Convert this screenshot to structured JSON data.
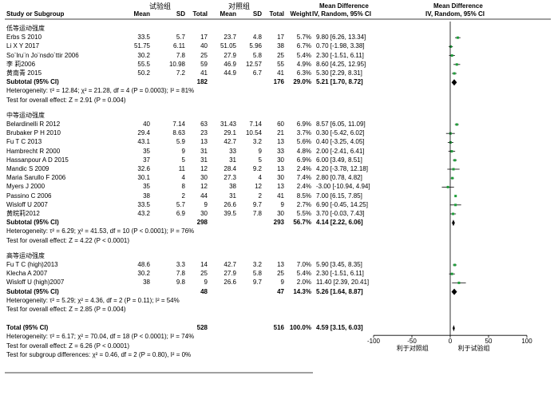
{
  "header": {
    "group_exp": "试验组",
    "group_ctrl": "对照组",
    "md_title": "Mean Difference",
    "md_sub": "IV, Random, 95% CI",
    "plot_title": "Mean Difference",
    "plot_sub": "IV, Random, 95% CI",
    "col_study": "Study or Subgroup",
    "col_mean1": "Mean",
    "col_sd1": "SD",
    "col_total1": "Total",
    "col_mean2": "Mean",
    "col_sd2": "SD",
    "col_total2": "Total",
    "col_weight": "Weight"
  },
  "chart_data": {
    "type": "forest",
    "xlim": [
      -100,
      100
    ],
    "xticks": [
      "-100",
      "-50",
      "0",
      "50",
      "100"
    ],
    "xlabel_left": "利于对照组",
    "xlabel_right": "利于试验组",
    "subgroups": [
      {
        "title": "低等运动强度",
        "studies": [
          {
            "name": "Erbs S 2010",
            "m1": "33.5",
            "sd1": "5.7",
            "n1": "17",
            "m2": "23.7",
            "sd2": "4.8",
            "n2": "17",
            "w": "5.7%",
            "ci": "9.80 [6.26, 13.34]",
            "md": 9.8,
            "lo": 6.26,
            "hi": 13.34
          },
          {
            "name": "Li X Y 2017",
            "m1": "51.75",
            "sd1": "6.11",
            "n1": "40",
            "m2": "51.05",
            "sd2": "5.96",
            "n2": "38",
            "w": "6.7%",
            "ci": "0.70 [-1.98, 3.38]",
            "md": 0.7,
            "lo": -1.98,
            "hi": 3.38
          },
          {
            "name": "So¨lru¨n Jo¨nsdo´ttir 2006",
            "m1": "30.2",
            "sd1": "7.8",
            "n1": "25",
            "m2": "27.9",
            "sd2": "5.8",
            "n2": "25",
            "w": "5.4%",
            "ci": "2.30 [-1.51, 6.11]",
            "md": 2.3,
            "lo": -1.51,
            "hi": 6.11
          },
          {
            "name": "李 莉2006",
            "m1": "55.5",
            "sd1": "10.98",
            "n1": "59",
            "m2": "46.9",
            "sd2": "12.57",
            "n2": "55",
            "w": "4.9%",
            "ci": "8.60 [4.25, 12.95]",
            "md": 8.6,
            "lo": 4.25,
            "hi": 12.95
          },
          {
            "name": "黄南青 2015",
            "m1": "50.2",
            "sd1": "7.2",
            "n1": "41",
            "m2": "44.9",
            "sd2": "6.7",
            "n2": "41",
            "w": "6.3%",
            "ci": "5.30 [2.29, 8.31]",
            "md": 5.3,
            "lo": 2.29,
            "hi": 8.31
          }
        ],
        "subtotal": {
          "label": "Subtotal (95% CI)",
          "n1": "182",
          "n2": "176",
          "w": "29.0%",
          "ci": "5.21 [1.70, 8.72]",
          "md": 5.21,
          "lo": 1.7,
          "hi": 8.72
        },
        "het": "Heterogeneity: τ² = 12.84; χ² = 21.28, df = 4 (P = 0.0003); I² = 81%",
        "test": "Test for overall effect: Z = 2.91 (P = 0.004)"
      },
      {
        "title": "中等运动强度",
        "studies": [
          {
            "name": "Belardinelli R 2012",
            "m1": "40",
            "sd1": "7.14",
            "n1": "63",
            "m2": "31.43",
            "sd2": "7.14",
            "n2": "60",
            "w": "6.9%",
            "ci": "8.57 [6.05, 11.09]",
            "md": 8.57,
            "lo": 6.05,
            "hi": 11.09
          },
          {
            "name": "Brubaker P H 2010",
            "m1": "29.4",
            "sd1": "8.63",
            "n1": "23",
            "m2": "29.1",
            "sd2": "10.54",
            "n2": "21",
            "w": "3.7%",
            "ci": "0.30 [-5.42, 6.02]",
            "md": 0.3,
            "lo": -5.42,
            "hi": 6.02
          },
          {
            "name": "Fu T C 2013",
            "m1": "43.1",
            "sd1": "5.9",
            "n1": "13",
            "m2": "42.7",
            "sd2": "3.2",
            "n2": "13",
            "w": "5.6%",
            "ci": "0.40 [-3.25, 4.05]",
            "md": 0.4,
            "lo": -3.25,
            "hi": 4.05
          },
          {
            "name": "Hambrecht R 2000",
            "m1": "35",
            "sd1": "9",
            "n1": "31",
            "m2": "33",
            "sd2": "9",
            "n2": "33",
            "w": "4.8%",
            "ci": "2.00 [-2.41, 6.41]",
            "md": 2.0,
            "lo": -2.41,
            "hi": 6.41
          },
          {
            "name": "Hassanpour A D 2015",
            "m1": "37",
            "sd1": "5",
            "n1": "31",
            "m2": "31",
            "sd2": "5",
            "n2": "30",
            "w": "6.9%",
            "ci": "6.00 [3.49, 8.51]",
            "md": 6.0,
            "lo": 3.49,
            "hi": 8.51
          },
          {
            "name": "Mandic S 2009",
            "m1": "32.6",
            "sd1": "11",
            "n1": "12",
            "m2": "28.4",
            "sd2": "9.2",
            "n2": "13",
            "w": "2.4%",
            "ci": "4.20 [-3.78, 12.18]",
            "md": 4.2,
            "lo": -3.78,
            "hi": 12.18
          },
          {
            "name": "Maria Sarullo F 2006",
            "m1": "30.1",
            "sd1": "4",
            "n1": "30",
            "m2": "27.3",
            "sd2": "4",
            "n2": "30",
            "w": "7.4%",
            "ci": "2.80 [0.78, 4.82]",
            "md": 2.8,
            "lo": 0.78,
            "hi": 4.82
          },
          {
            "name": "Myers J 2000",
            "m1": "35",
            "sd1": "8",
            "n1": "12",
            "m2": "38",
            "sd2": "12",
            "n2": "13",
            "w": "2.4%",
            "ci": "-3.00 [-10.94, 4.94]",
            "md": -3.0,
            "lo": -10.94,
            "hi": 4.94
          },
          {
            "name": "Passino C 2006",
            "m1": "38",
            "sd1": "2",
            "n1": "44",
            "m2": "31",
            "sd2": "2",
            "n2": "41",
            "w": "8.5%",
            "ci": "7.00 [6.15, 7.85]",
            "md": 7.0,
            "lo": 6.15,
            "hi": 7.85
          },
          {
            "name": "Wisloff U 2007",
            "m1": "33.5",
            "sd1": "5.7",
            "n1": "9",
            "m2": "26.6",
            "sd2": "9.7",
            "n2": "9",
            "w": "2.7%",
            "ci": "6.90 [-0.45, 14.25]",
            "md": 6.9,
            "lo": -0.45,
            "hi": 14.25
          },
          {
            "name": "黄皖莉2012",
            "m1": "43.2",
            "sd1": "6.9",
            "n1": "30",
            "m2": "39.5",
            "sd2": "7.8",
            "n2": "30",
            "w": "5.5%",
            "ci": "3.70 [-0.03, 7.43]",
            "md": 3.7,
            "lo": -0.03,
            "hi": 7.43
          }
        ],
        "subtotal": {
          "label": "Subtotal (95% CI)",
          "n1": "298",
          "n2": "293",
          "w": "56.7%",
          "ci": "4.14 [2.22, 6.06]",
          "md": 4.14,
          "lo": 2.22,
          "hi": 6.06
        },
        "het": "Heterogeneity: τ² = 6.29; χ² = 41.53, df = 10 (P < 0.0001); I² = 76%",
        "test": "Test for overall effect: Z = 4.22 (P < 0.0001)"
      },
      {
        "title": "高等运动强度",
        "studies": [
          {
            "name": "Fu T C (high)2013",
            "m1": "48.6",
            "sd1": "3.3",
            "n1": "14",
            "m2": "42.7",
            "sd2": "3.2",
            "n2": "13",
            "w": "7.0%",
            "ci": "5.90 [3.45, 8.35]",
            "md": 5.9,
            "lo": 3.45,
            "hi": 8.35
          },
          {
            "name": "Klecha A 2007",
            "m1": "30.2",
            "sd1": "7.8",
            "n1": "25",
            "m2": "27.9",
            "sd2": "5.8",
            "n2": "25",
            "w": "5.4%",
            "ci": "2.30 [-1.51, 6.11]",
            "md": 2.3,
            "lo": -1.51,
            "hi": 6.11
          },
          {
            "name": "Wisloff U (high)2007",
            "m1": "38",
            "sd1": "9.8",
            "n1": "9",
            "m2": "26.6",
            "sd2": "9.7",
            "n2": "9",
            "w": "2.0%",
            "ci": "11.40 [2.39, 20.41]",
            "md": 11.4,
            "lo": 2.39,
            "hi": 20.41
          }
        ],
        "subtotal": {
          "label": "Subtotal (95% CI)",
          "n1": "48",
          "n2": "47",
          "w": "14.3%",
          "ci": "5.26 [1.64, 8.87]",
          "md": 5.26,
          "lo": 1.64,
          "hi": 8.87
        },
        "het": "Heterogeneity: τ² = 5.29; χ² = 4.36, df = 2 (P = 0.11); I² = 54%",
        "test": "Test for overall effect: Z = 2.85 (P = 0.004)"
      }
    ],
    "total": {
      "label": "Total (95% CI)",
      "n1": "528",
      "n2": "516",
      "w": "100.0%",
      "ci": "4.59 [3.15, 6.03]",
      "md": 4.59,
      "lo": 3.15,
      "hi": 6.03
    },
    "total_het": "Heterogeneity: τ² = 6.17; χ² = 70.04, df = 18 (P < 0.0001); I² = 74%",
    "total_test": "Test for overall effect: Z = 6.26 (P < 0.0001)",
    "subgroup_test": "Test for subgroup differences: χ² = 0.46, df = 2 (P = 0.80), I² = 0%"
  }
}
